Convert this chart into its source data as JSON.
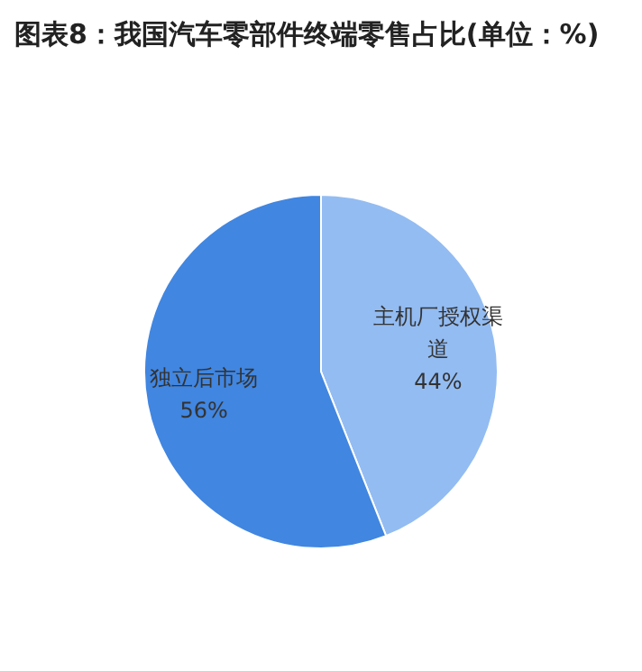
{
  "chart_data": {
    "type": "pie",
    "title": "图表8：我国汽车零部件终端零售占比(单位：%)",
    "categories": [
      "主机厂授权渠道",
      "独立后市场"
    ],
    "values": [
      44,
      56
    ],
    "colors": [
      "#93bcf2",
      "#4186e0"
    ],
    "value_labels": [
      "44%",
      "56%"
    ],
    "legend": false
  }
}
